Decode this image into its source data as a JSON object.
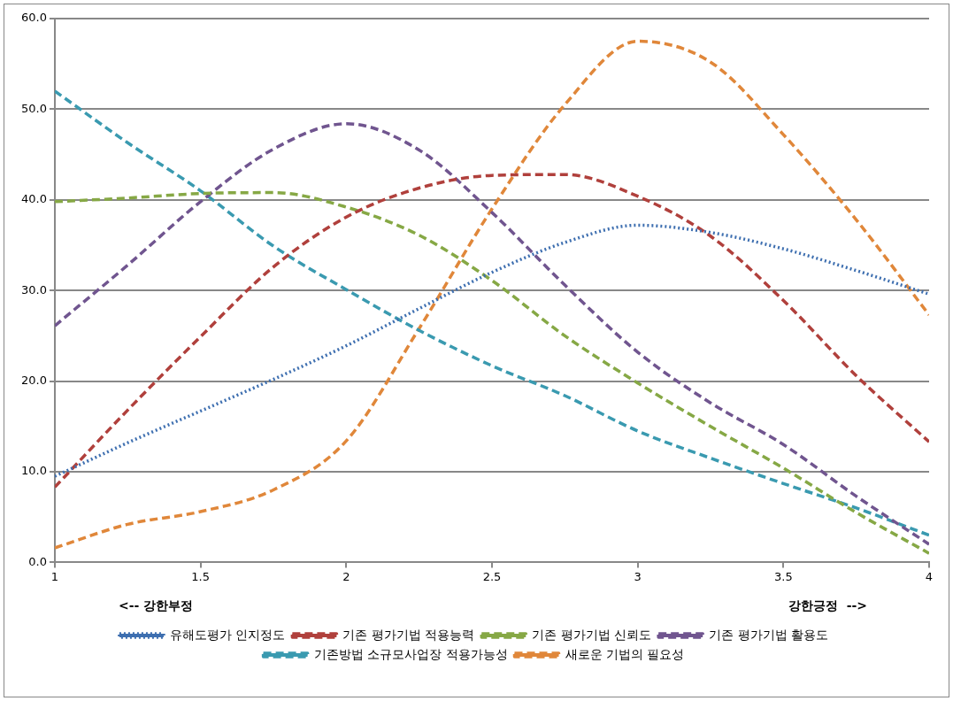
{
  "chart_data": {
    "type": "line",
    "x": [
      1,
      1.25,
      1.5,
      1.75,
      2,
      2.25,
      2.5,
      2.75,
      3,
      3.25,
      3.5,
      3.75,
      4
    ],
    "series": [
      {
        "name": "유해도평가 인지정도",
        "color": "#3e6fb0",
        "line_style": "dotted",
        "values": [
          9.5,
          13.2,
          16.7,
          20.2,
          23.9,
          28,
          32,
          35.3,
          37.2,
          36.4,
          34.6,
          32.2,
          29.6
        ]
      },
      {
        "name": "기존 평가기법 적용능력",
        "color": "#b0403c",
        "line_style": "dashed",
        "values": [
          8.3,
          16.8,
          24.9,
          32.6,
          38.1,
          41.3,
          42.7,
          42.8,
          40.4,
          36,
          28.9,
          20.6,
          13.3
        ]
      },
      {
        "name": "기존 평가기법 신뢰도",
        "color": "#86a845",
        "line_style": "dashed",
        "values": [
          39.8,
          40.2,
          40.7,
          40.8,
          39.2,
          36.1,
          31.1,
          25,
          19.8,
          15,
          10.4,
          5.5,
          1
        ]
      },
      {
        "name": "기존 평가기법 활용도",
        "color": "#70558f",
        "line_style": "dashed",
        "values": [
          26.1,
          32.8,
          39.8,
          45.6,
          48.4,
          45.5,
          38.6,
          30.6,
          23.2,
          17.6,
          13,
          7.3,
          2
        ]
      },
      {
        "name": "기존방법 소규모사업장 적용가능성",
        "color": "#3a9ab0",
        "line_style": "dashed",
        "values": [
          52,
          46.3,
          41,
          34.9,
          30.1,
          25.6,
          21.7,
          18.4,
          14.5,
          11.5,
          8.7,
          6,
          3
        ]
      },
      {
        "name": "새로운 기법의 필요성",
        "color": "#e0873a",
        "line_style": "dashed",
        "values": [
          1.6,
          4.2,
          5.6,
          8,
          13.4,
          25.8,
          39,
          50.5,
          57.5,
          55.2,
          47.2,
          37.8,
          27.3
        ]
      }
    ],
    "xlim": [
      1,
      4
    ],
    "xticks": [
      1,
      1.5,
      2,
      2.5,
      3,
      3.5,
      4
    ],
    "ylim": [
      0,
      60
    ],
    "yticks": [
      {
        "value": 0,
        "label": "0.0"
      },
      {
        "value": 10,
        "label": "10.0"
      },
      {
        "value": 20,
        "label": "20.0"
      },
      {
        "value": 30,
        "label": "30.0"
      },
      {
        "value": 40,
        "label": "40.0"
      },
      {
        "value": 50,
        "label": "50.0"
      },
      {
        "value": 60,
        "label": "60.0"
      }
    ],
    "grid": "y",
    "legend": "bottom",
    "marker": "none",
    "annotations": [
      "<-- 강한부정",
      "강한긍정  -->"
    ]
  }
}
